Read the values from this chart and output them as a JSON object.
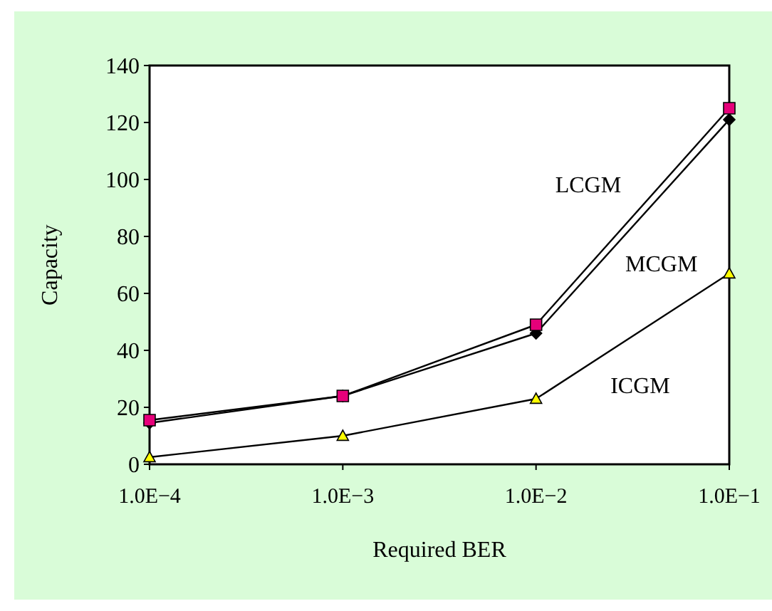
{
  "chart_data": {
    "type": "line",
    "xlabel": "Required BER",
    "ylabel": "Capacity",
    "categories": [
      "1.0E−4",
      "1.0E−3",
      "1.0E−2",
      "1.0E−1"
    ],
    "series": [
      {
        "name": "LCGM",
        "color": "#e6007a",
        "marker": "square",
        "values": [
          15.5,
          24,
          49,
          125
        ]
      },
      {
        "name": "MCGM",
        "color": "#000000",
        "marker": "diamond",
        "values": [
          14.5,
          24,
          46,
          121
        ]
      },
      {
        "name": "ICGM",
        "color": "#ffff00",
        "marker": "triangle",
        "values": [
          2.5,
          10,
          23,
          67
        ]
      }
    ],
    "ylim": [
      0,
      140
    ],
    "yticks": [
      0,
      20,
      40,
      60,
      80,
      100,
      120,
      140
    ],
    "grid": false,
    "legend": false
  }
}
